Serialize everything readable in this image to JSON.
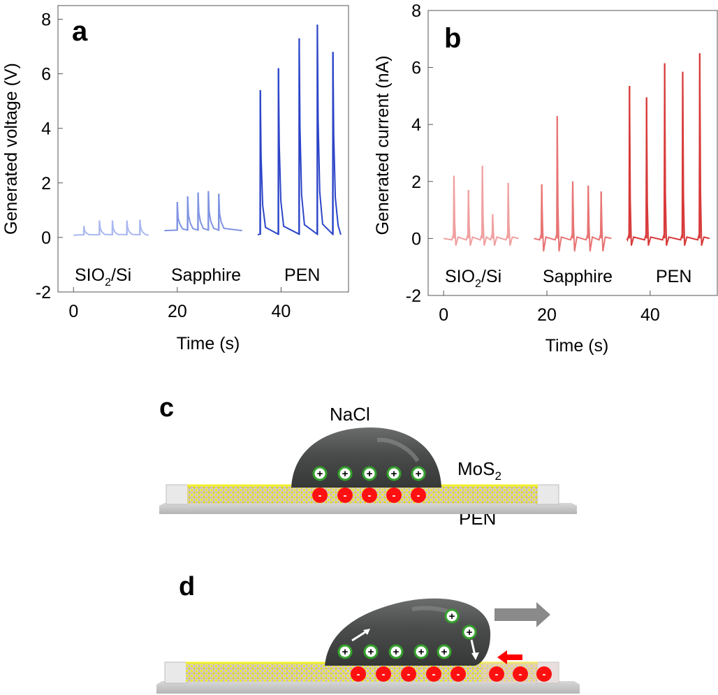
{
  "chart_data": [
    {
      "type": "line",
      "panel_label": "a",
      "ylabel": "Generated voltage (V)",
      "xlabel": "Time (s)",
      "ylim": [
        -2,
        8.5
      ],
      "xlim": [
        -3,
        53
      ],
      "xticks": [
        0,
        20,
        40
      ],
      "yticks": [
        -2,
        0,
        2,
        4,
        6,
        8
      ],
      "tick_labels_x": [
        "0",
        "20",
        "40"
      ],
      "tick_labels_y": [
        "-2",
        "0",
        "2",
        "4",
        "6",
        "8"
      ],
      "baseline": 0.05,
      "series": [
        {
          "name": "SIO2/Si",
          "label_main": "SIO",
          "label_sub": "2",
          "label_rest": "/Si",
          "color": "#aab8f0",
          "x_range": [
            0,
            14.5
          ],
          "baseline": 0.08,
          "peak_times": [
            2,
            5,
            7.5,
            10.3,
            12.8
          ],
          "peak_values": [
            0.42,
            0.62,
            0.62,
            0.62,
            0.65
          ]
        },
        {
          "name": "Sapphire",
          "color": "#7f93e3",
          "x_range": [
            17.5,
            32.5
          ],
          "baseline": 0.25,
          "peak_times": [
            20,
            22,
            24,
            26,
            28
          ],
          "peak_values": [
            1.3,
            1.5,
            1.65,
            1.7,
            1.6
          ]
        },
        {
          "name": "PEN",
          "color": "#2c45c8",
          "x_range": [
            35.5,
            51.5
          ],
          "baseline": 0.1,
          "peak_times": [
            36,
            39.5,
            43.5,
            47,
            50
          ],
          "peak_values": [
            5.4,
            6.2,
            7.3,
            7.8,
            6.8
          ]
        }
      ]
    },
    {
      "type": "line",
      "panel_label": "b",
      "ylabel": "Generated current (nA)",
      "xlabel": "Time (s)",
      "ylim": [
        -2,
        8
      ],
      "xlim": [
        -3,
        53
      ],
      "xticks": [
        0,
        20,
        40
      ],
      "yticks": [
        -2,
        0,
        2,
        4,
        6,
        8
      ],
      "tick_labels_x": [
        "0",
        "20",
        "40"
      ],
      "tick_labels_y": [
        "-2",
        "0",
        "2",
        "4",
        "6",
        "8"
      ],
      "series": [
        {
          "name": "SIO2/Si",
          "label_main": "SIO",
          "label_sub": "2",
          "label_rest": "/Si",
          "color": "#f0a0a0",
          "x_range": [
            0,
            14.5
          ],
          "baseline": 0,
          "peak_times": [
            2,
            4.8,
            7.5,
            9.5,
            12.5
          ],
          "peak_values": [
            2.2,
            1.7,
            2.55,
            0.85,
            1.95
          ]
        },
        {
          "name": "Sapphire",
          "color": "#e87474",
          "x_range": [
            17.5,
            32.5
          ],
          "baseline": 0,
          "peak_times": [
            19,
            22,
            25,
            28,
            30.5
          ],
          "peak_values": [
            1.9,
            4.3,
            2.0,
            1.85,
            1.65
          ]
        },
        {
          "name": "PEN",
          "color": "#d83a3a",
          "x_range": [
            35.5,
            51.5
          ],
          "baseline": 0,
          "peak_times": [
            36,
            39.3,
            42.8,
            46.3,
            49.6
          ],
          "peak_values": [
            5.35,
            4.95,
            6.15,
            5.85,
            6.5
          ]
        }
      ]
    }
  ],
  "panel_c": {
    "label": "c",
    "droplet_label": "NaCl",
    "layer_label_main": "MoS",
    "layer_label_sub": "2",
    "substrate_label": "PEN",
    "positive_symbol": "+",
    "negative_symbol": "-"
  },
  "panel_d": {
    "label": "d",
    "positive_symbol": "+",
    "negative_symbol": "-"
  },
  "colors": {
    "positive_ring": "#35a02d",
    "negative_fill": "#ff1010",
    "mos2_yellow": "#e6e610",
    "droplet": "#4c4e4e",
    "arrow_gray": "#8a8a8a",
    "arrow_red": "#ff0000"
  }
}
